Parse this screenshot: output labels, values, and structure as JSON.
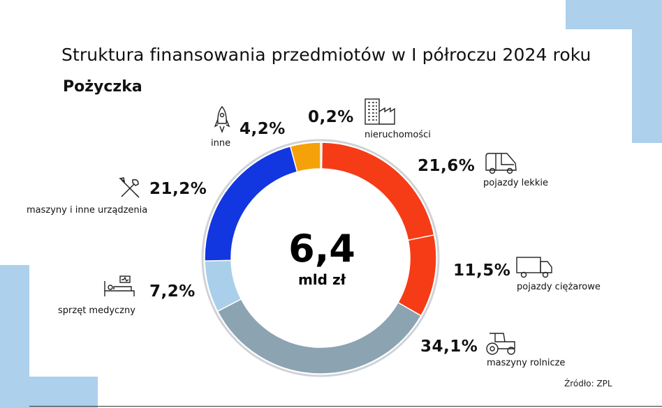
{
  "title": "Struktura finansowania przedmiotów w I półroczu 2024 roku",
  "subtitle": "Pożyczka",
  "center": {
    "value": "6,4",
    "unit": "mld zł"
  },
  "source": "Źródło: ZPL",
  "chart_data": {
    "type": "pie",
    "style": "donut",
    "title": "Struktura finansowania przedmiotów w I półroczu 2024 roku",
    "subtitle": "Pożyczka",
    "total_label": "6,4 mld zł",
    "slices": [
      {
        "name": "nieruchomości",
        "value": 0.2,
        "label": "0,2%",
        "color": "#8a6d2b",
        "icon": "factory-icon"
      },
      {
        "name": "pojazdy lekkie",
        "value": 21.6,
        "label": "21,6%",
        "color": "#f53c16",
        "icon": "van-icon"
      },
      {
        "name": "pojazdy ciężarowe",
        "value": 11.5,
        "label": "11,5%",
        "color": "#f53c16",
        "icon": "truck-icon"
      },
      {
        "name": "maszyny rolnicze",
        "value": 34.1,
        "label": "34,1%",
        "color": "#8ca3b1",
        "icon": "tractor-icon"
      },
      {
        "name": "sprzęt medyczny",
        "value": 7.2,
        "label": "7,2%",
        "color": "#a9cfea",
        "icon": "hospital-bed-icon"
      },
      {
        "name": "maszyny i inne urządzenia",
        "value": 21.2,
        "label": "21,2%",
        "color": "#1236e0",
        "icon": "tools-icon"
      },
      {
        "name": "inne",
        "value": 4.2,
        "label": "4,2%",
        "color": "#f4a10a",
        "icon": "rocket-icon"
      }
    ],
    "ring_color": "#cfd3d8"
  }
}
